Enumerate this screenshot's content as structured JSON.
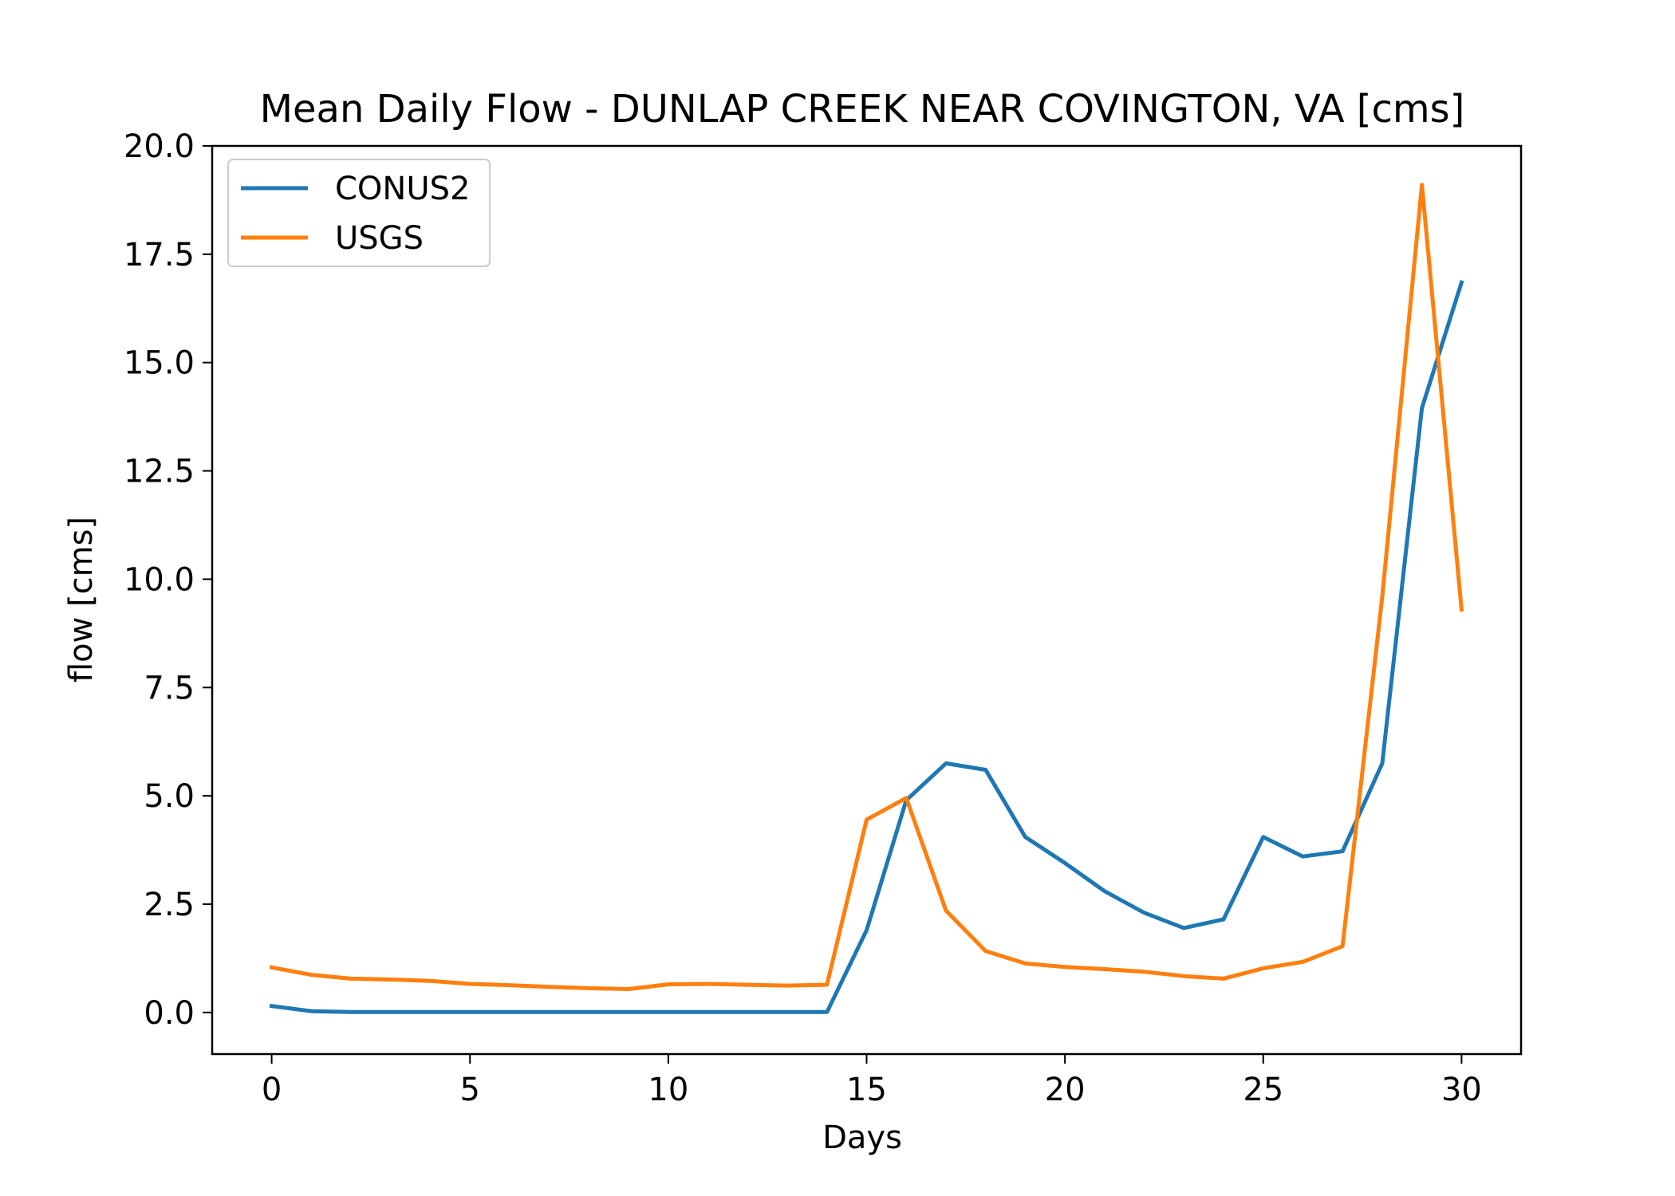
{
  "chart_data": {
    "type": "line",
    "title": "Mean Daily Flow - DUNLAP CREEK NEAR COVINGTON, VA [cms]",
    "xlabel": "Days",
    "ylabel": "flow [cms]",
    "xlim": [
      -1.5,
      31.5
    ],
    "ylim": [
      -0.96,
      20.0
    ],
    "xticks": [
      0,
      5,
      10,
      15,
      20,
      25,
      30
    ],
    "xtick_labels": [
      "0",
      "5",
      "10",
      "15",
      "20",
      "25",
      "30"
    ],
    "yticks": [
      0,
      2.5,
      5,
      7.5,
      10,
      12.5,
      15,
      17.5,
      20
    ],
    "ytick_labels": [
      "0.0",
      "2.5",
      "5.0",
      "7.5",
      "10.0",
      "12.5",
      "15.0",
      "17.5",
      "20.0"
    ],
    "grid": false,
    "legend_position": "upper-left",
    "x": [
      0,
      1,
      2,
      3,
      4,
      5,
      6,
      7,
      8,
      9,
      10,
      11,
      12,
      13,
      14,
      15,
      16,
      17,
      18,
      19,
      20,
      21,
      22,
      23,
      24,
      25,
      26,
      27,
      28,
      29,
      30
    ],
    "series": [
      {
        "name": "CONUS2",
        "color": "#1f77b4",
        "values": [
          0.15,
          0.03,
          0.01,
          0.01,
          0.01,
          0.01,
          0.01,
          0.01,
          0.01,
          0.01,
          0.01,
          0.01,
          0.01,
          0.01,
          0.01,
          1.9,
          4.9,
          5.75,
          5.6,
          4.05,
          3.45,
          2.8,
          2.3,
          1.95,
          2.15,
          4.05,
          3.6,
          3.72,
          5.75,
          13.95,
          16.85
        ]
      },
      {
        "name": "USGS",
        "color": "#ff7f0e",
        "values": [
          1.04,
          0.87,
          0.78,
          0.76,
          0.73,
          0.66,
          0.63,
          0.59,
          0.56,
          0.54,
          0.65,
          0.66,
          0.64,
          0.62,
          0.64,
          4.45,
          4.95,
          2.35,
          1.42,
          1.13,
          1.05,
          1.0,
          0.94,
          0.84,
          0.78,
          1.02,
          1.17,
          1.53,
          9.6,
          19.1,
          9.3
        ]
      }
    ]
  }
}
